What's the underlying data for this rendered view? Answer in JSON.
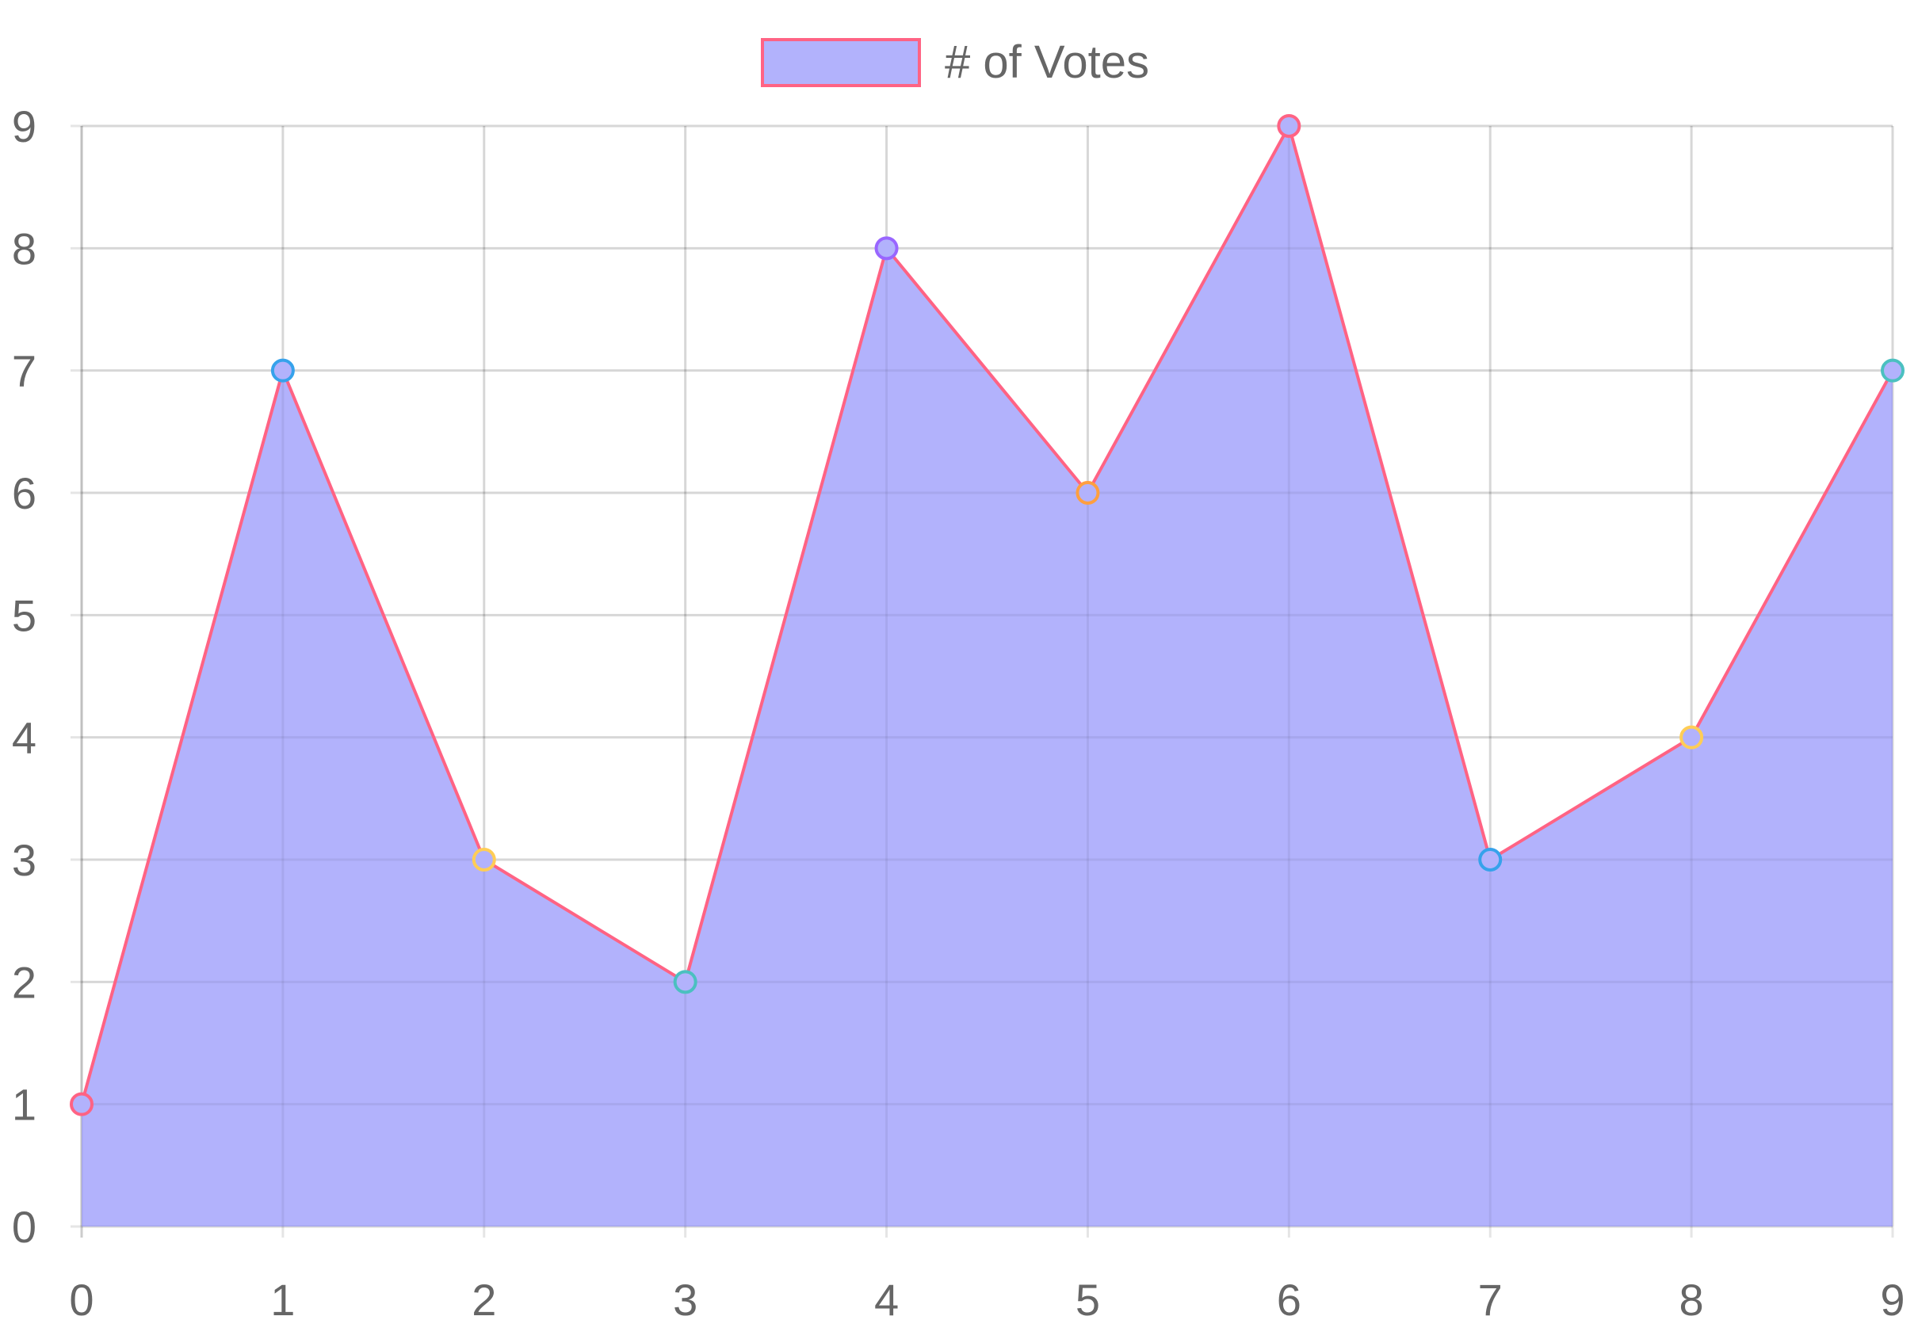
{
  "chart_data": {
    "type": "area",
    "x": [
      0,
      1,
      2,
      3,
      4,
      5,
      6,
      7,
      8,
      9
    ],
    "series": [
      {
        "name": "# of Votes",
        "values": [
          1,
          7,
          3,
          2,
          8,
          6,
          9,
          3,
          4,
          7
        ],
        "line_color": "#ff6384",
        "fill_color": "#b2b2fc"
      }
    ],
    "point_colors": [
      "#ff6384",
      "#36a2eb",
      "#ffcd56",
      "#4bc0c0",
      "#9966ff",
      "#ff9f40",
      "#ff6384",
      "#36a2eb",
      "#ffcd56",
      "#4bc0c0"
    ],
    "x_ticks": [
      "0",
      "1",
      "2",
      "3",
      "4",
      "5",
      "6",
      "7",
      "8",
      "9"
    ],
    "y_ticks": [
      "0",
      "1",
      "2",
      "3",
      "4",
      "5",
      "6",
      "7",
      "8",
      "9"
    ],
    "xlim": [
      0,
      9
    ],
    "ylim": [
      0,
      9
    ],
    "grid": true,
    "legend_position": "top-center",
    "title": "",
    "xlabel": "",
    "ylabel": ""
  }
}
